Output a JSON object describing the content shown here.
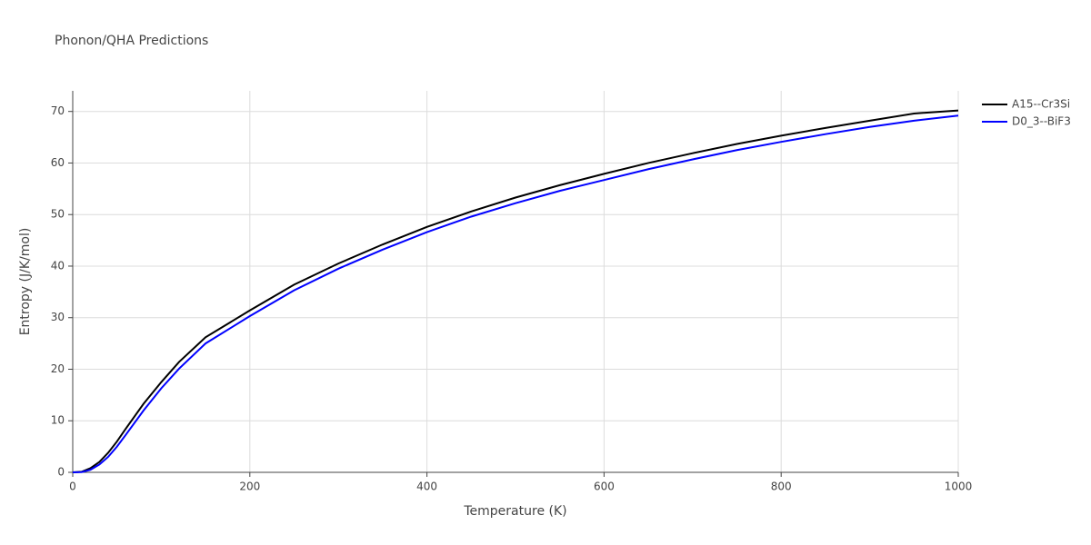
{
  "chart_data": {
    "type": "line",
    "title": "Phonon/QHA Predictions",
    "xlabel": "Temperature (K)",
    "ylabel": "Entropy (J/K/mol)",
    "x": [
      0,
      10,
      20,
      30,
      40,
      50,
      60,
      80,
      100,
      120,
      150,
      200,
      250,
      300,
      350,
      400,
      450,
      500,
      550,
      600,
      650,
      700,
      750,
      800,
      850,
      900,
      950,
      1000
    ],
    "series": [
      {
        "name": "A15--Cr3Si",
        "color": "#000000",
        "values": [
          0,
          0.1,
          0.8,
          2,
          3.8,
          6,
          8.5,
          13.3,
          17.5,
          21.4,
          26.2,
          31.4,
          36.4,
          40.5,
          44.2,
          47.6,
          50.6,
          53.3,
          55.7,
          57.9,
          60,
          61.9,
          63.7,
          65.3,
          66.8,
          68.2,
          69.6,
          70.2
        ]
      },
      {
        "name": "D0_3--BiF3",
        "color": "#0000ff",
        "values": [
          0,
          0.05,
          0.5,
          1.5,
          3,
          5,
          7.3,
          12,
          16.3,
          20.1,
          25,
          30.3,
          35.3,
          39.5,
          43.2,
          46.6,
          49.6,
          52.2,
          54.6,
          56.7,
          58.8,
          60.7,
          62.5,
          64.1,
          65.6,
          67,
          68.2,
          69.2
        ]
      }
    ],
    "xlim": [
      0,
      1000
    ],
    "xticks": [
      0,
      200,
      400,
      600,
      800,
      1000
    ],
    "ylim": [
      0,
      74
    ],
    "yticks": [
      0,
      10,
      20,
      30,
      40,
      50,
      60,
      70
    ],
    "grid": true,
    "legend": "right"
  }
}
